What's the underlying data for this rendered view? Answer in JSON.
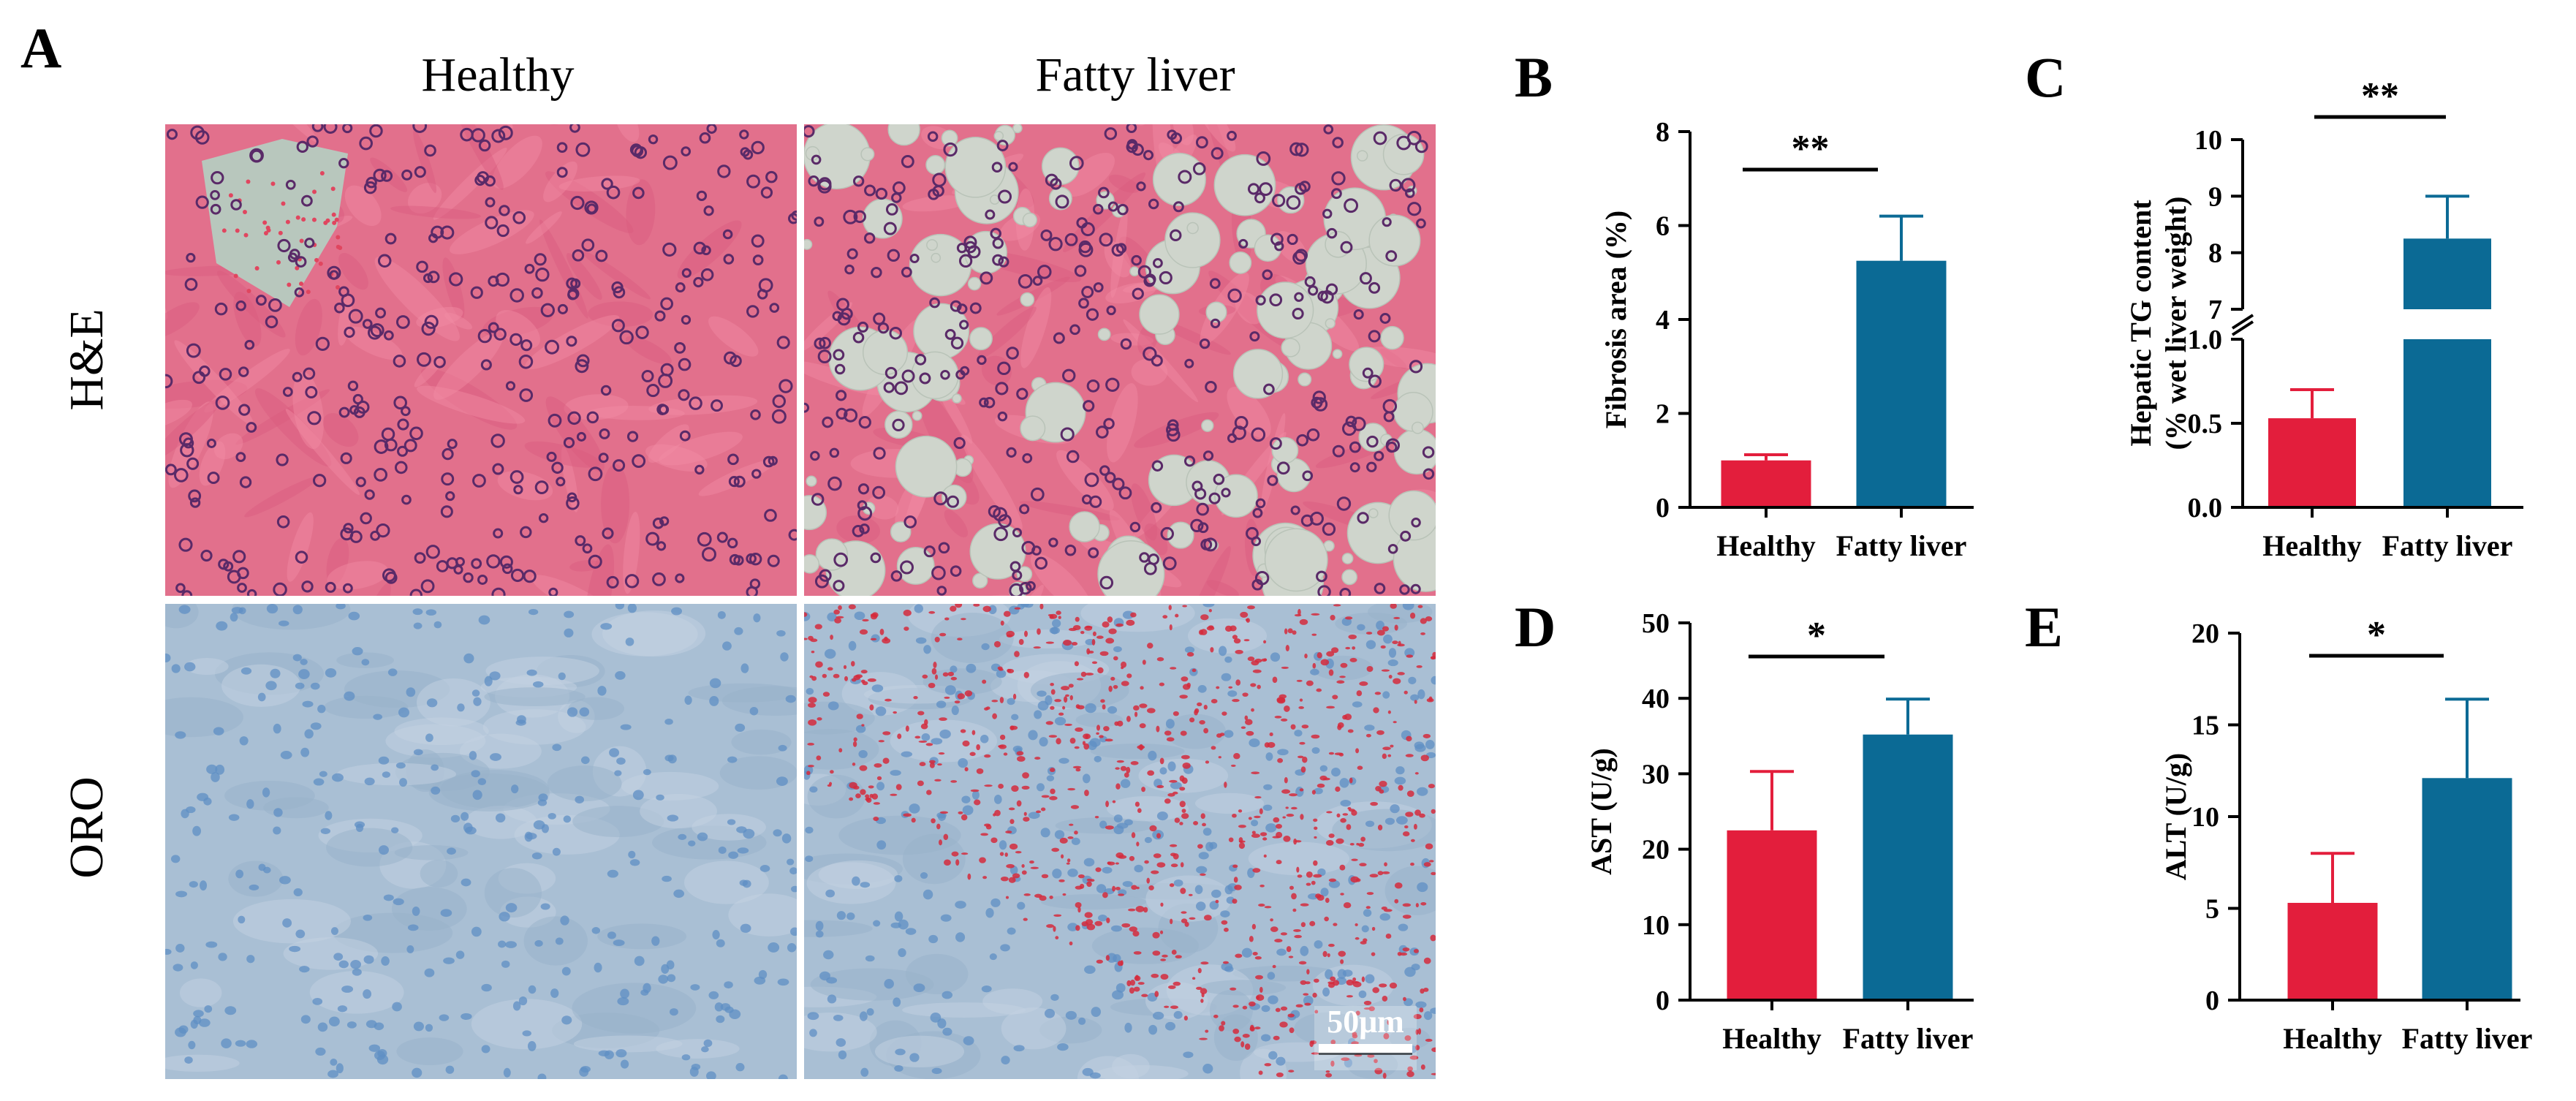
{
  "colors": {
    "healthy": "#e31e3c",
    "fatty": "#0b6a95",
    "he_background": "#e2708c",
    "he_nucleus": "#5a2a68",
    "he_droplet": "#cfd5cc",
    "oro_background": "#a9bfd4",
    "oro_nucleus": "#5f8fc4",
    "oro_lipid": "#d52a3c"
  },
  "panel_a": {
    "letter": "A",
    "col_labels": [
      "Healthy",
      "Fatty liver"
    ],
    "row_labels": [
      "H&E",
      "ORO"
    ],
    "scale_bar": "50μm"
  },
  "chart_data": [
    {
      "panel": "B",
      "type": "bar",
      "categories": [
        "Healthy",
        "Fatty liver"
      ],
      "values": [
        1.0,
        5.25
      ],
      "errors": [
        0.12,
        0.95
      ],
      "ylabel": "Fibrosis area (%)",
      "ylim": [
        0,
        8
      ],
      "yticks": [
        0,
        2,
        4,
        6,
        8
      ],
      "ytick_labels": [
        "0",
        "2",
        "4",
        "6",
        "8"
      ],
      "significance": "**",
      "grid": false
    },
    {
      "panel": "C",
      "type": "bar",
      "categories": [
        "Healthy",
        "Fatty liver"
      ],
      "values": [
        0.53,
        8.25
      ],
      "errors": [
        0.17,
        0.75
      ],
      "ylabel": "Hepatic TG content",
      "ylabel2": "(% wet liver weight)",
      "broken_axis": {
        "lower": [
          0,
          1.0
        ],
        "upper": [
          7,
          10
        ]
      },
      "yticks_lower": [
        0,
        0.5,
        1.0
      ],
      "ytick_labels_lower": [
        "0.0",
        "0.5",
        "1.0"
      ],
      "yticks_upper": [
        7,
        8,
        9,
        10
      ],
      "ytick_labels_upper": [
        "7",
        "8",
        "9",
        "10"
      ],
      "significance": "**",
      "grid": false
    },
    {
      "panel": "D",
      "type": "bar",
      "categories": [
        "Healthy",
        "Fatty liver"
      ],
      "values": [
        22.5,
        35.2
      ],
      "errors": [
        7.8,
        4.7
      ],
      "ylabel": "AST (U/g)",
      "ylim": [
        0,
        50
      ],
      "yticks": [
        0,
        10,
        20,
        30,
        40,
        50
      ],
      "ytick_labels": [
        "0",
        "10",
        "20",
        "30",
        "40",
        "50"
      ],
      "significance": "*",
      "grid": false
    },
    {
      "panel": "E",
      "type": "bar",
      "categories": [
        "Healthy",
        "Fatty liver"
      ],
      "values": [
        5.3,
        12.1
      ],
      "errors": [
        2.7,
        4.3
      ],
      "ylabel": "ALT (U/g)",
      "ylim": [
        0,
        20
      ],
      "yticks": [
        0,
        5,
        10,
        15,
        20
      ],
      "ytick_labels": [
        "0",
        "5",
        "10",
        "15",
        "20"
      ],
      "significance": "*",
      "grid": false
    }
  ]
}
